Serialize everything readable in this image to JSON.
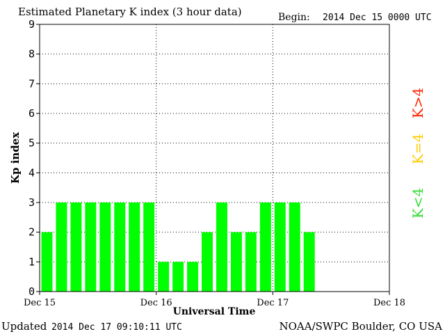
{
  "header": {
    "title": "Estimated Planetary K index (3 hour data)",
    "begin_label": "Begin:",
    "begin_value": "2014 Dec 15 0000 UTC"
  },
  "footer": {
    "updated_label": "Updated",
    "updated_value": "2014 Dec 17 09:10:11 UTC",
    "credit": "NOAA/SWPC Boulder, CO USA"
  },
  "legend": {
    "high": "K>4",
    "equal": "K=4",
    "low": "K<4"
  },
  "colors": {
    "bar": "#00ff00",
    "low": "#33dd33",
    "equal": "#ffcc00",
    "high": "#ff2200"
  },
  "chart_data": {
    "type": "bar",
    "title": "Estimated Planetary K index (3 hour data)",
    "xlabel": "Universal Time",
    "ylabel": "Kp index",
    "ylim": [
      0,
      9
    ],
    "y_ticks": [
      "0",
      "1",
      "2",
      "3",
      "4",
      "5",
      "6",
      "7",
      "8",
      "9"
    ],
    "x_ticks": [
      "Dec 15",
      "Dec 16",
      "Dec 17",
      "Dec 18"
    ],
    "grid": true,
    "values": [
      2,
      3,
      3,
      3,
      3,
      3,
      3,
      3,
      1,
      1,
      1,
      2,
      3,
      2,
      2,
      3,
      3,
      3,
      2
    ]
  }
}
